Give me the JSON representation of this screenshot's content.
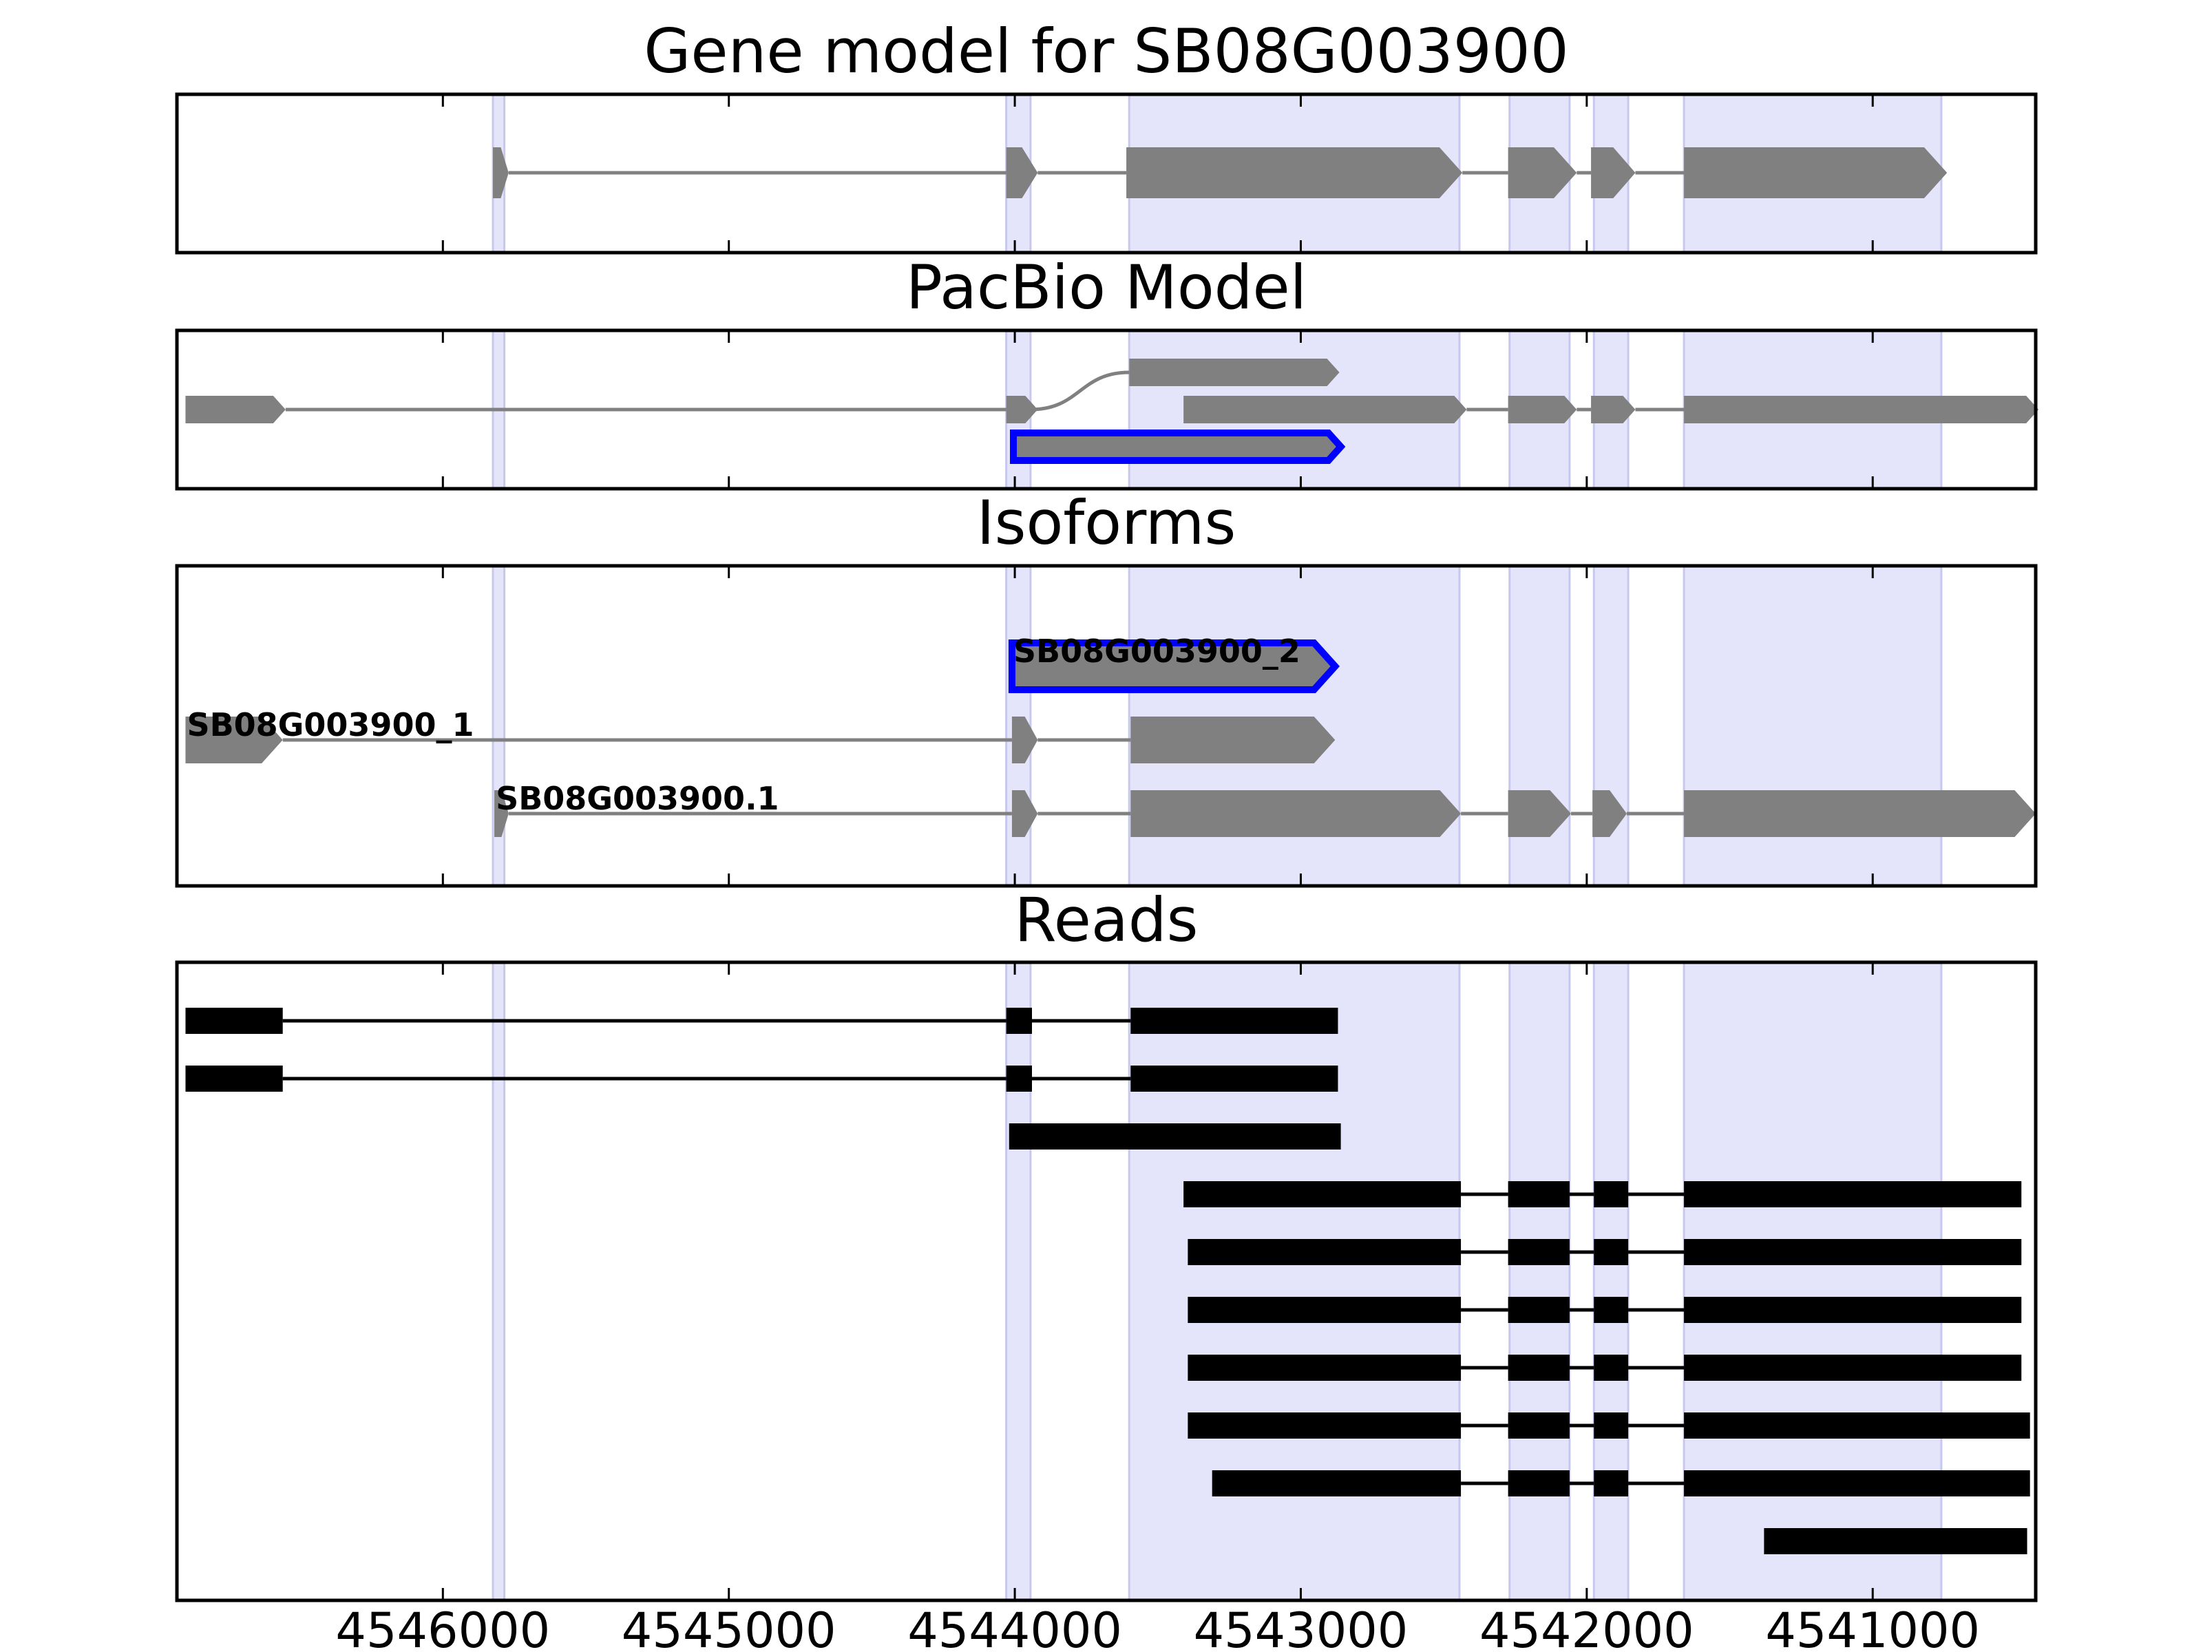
{
  "chart_data": {
    "type": "gene_model",
    "x_ticks": [
      4546000,
      4545000,
      4544000,
      4543000,
      4542000,
      4541000
    ],
    "xlim": [
      4546930,
      4540430
    ],
    "x_reversed": true,
    "highlight_color": "#e4e4fb",
    "gene_color": "#808080",
    "selected_color": "#0000ff",
    "read_color": "#000000",
    "highlight_regions": [
      [
        4545825,
        4545785
      ],
      [
        4544030,
        4543945
      ],
      [
        4543600,
        4542445
      ],
      [
        4542270,
        4542060
      ],
      [
        4541975,
        4541855
      ],
      [
        4541660,
        4540760
      ]
    ],
    "panels": [
      {
        "title": "Gene model for SB08G003900",
        "tracks": [
          {
            "row": 0,
            "exons": [
              [
                4545825,
                4545770
              ],
              [
                4544030,
                4543920
              ],
              [
                4543610,
                4542435
              ],
              [
                4542275,
                4542035
              ],
              [
                4541985,
                4541830
              ],
              [
                4541660,
                4540740
              ]
            ]
          }
        ]
      },
      {
        "title": "PacBio Model",
        "tracks": [
          {
            "row": 0,
            "exons": [
              [
                4543600,
                4542865
              ]
            ],
            "connector": [
              4543945,
              4543600,
              1
            ]
          },
          {
            "row": 1,
            "exons": [
              [
                4546900,
                4546550
              ],
              [
                4544030,
                4543920
              ],
              [
                4543410,
                4542420
              ],
              [
                4542275,
                4542035
              ],
              [
                4541985,
                4541830
              ],
              [
                4541660,
                4540420
              ]
            ],
            "no_link": [
              [
                4543920,
                4543410
              ]
            ]
          },
          {
            "row": 2,
            "exons": [
              [
                4544005,
                4542860
              ]
            ],
            "selected": true
          }
        ]
      },
      {
        "title": "Isoforms",
        "labels": [
          "SB08G003900_2",
          "SB08G003900_1",
          "SB08G003900.1"
        ],
        "tracks": [
          {
            "row": 0,
            "exons": [
              [
                4544010,
                4542880
              ]
            ],
            "selected": true,
            "label_index": 0
          },
          {
            "row": 1,
            "exons": [
              [
                4546900,
                4546560
              ],
              [
                4544010,
                4543920
              ],
              [
                4543595,
                4542880
              ]
            ],
            "label_index": 1
          },
          {
            "row": 2,
            "exons": [
              [
                4545820,
                4545770
              ],
              [
                4544010,
                4543920
              ],
              [
                4543595,
                4542440
              ],
              [
                4542275,
                4542055
              ],
              [
                4541980,
                4541860
              ],
              [
                4541660,
                4540430
              ]
            ],
            "label_index": 2
          }
        ]
      },
      {
        "title": "Reads",
        "tracks": [
          {
            "row": 0,
            "exons": [
              [
                4546900,
                4546560
              ],
              [
                4544030,
                4543940
              ],
              [
                4543595,
                4542870
              ]
            ]
          },
          {
            "row": 1,
            "exons": [
              [
                4546900,
                4546560
              ],
              [
                4544030,
                4543940
              ],
              [
                4543595,
                4542870
              ]
            ]
          },
          {
            "row": 2,
            "exons": [
              [
                4544020,
                4542860
              ]
            ]
          },
          {
            "row": 3,
            "exons": [
              [
                4543410,
                4542440
              ],
              [
                4542275,
                4542060
              ],
              [
                4541975,
                4541855
              ],
              [
                4541660,
                4540480
              ]
            ]
          },
          {
            "row": 4,
            "exons": [
              [
                4543395,
                4542440
              ],
              [
                4542275,
                4542060
              ],
              [
                4541975,
                4541855
              ],
              [
                4541660,
                4540480
              ]
            ]
          },
          {
            "row": 5,
            "exons": [
              [
                4543395,
                4542440
              ],
              [
                4542275,
                4542060
              ],
              [
                4541975,
                4541855
              ],
              [
                4541660,
                4540480
              ]
            ]
          },
          {
            "row": 6,
            "exons": [
              [
                4543395,
                4542440
              ],
              [
                4542275,
                4542060
              ],
              [
                4541975,
                4541855
              ],
              [
                4541660,
                4540480
              ]
            ]
          },
          {
            "row": 7,
            "exons": [
              [
                4543395,
                4542440
              ],
              [
                4542275,
                4542060
              ],
              [
                4541975,
                4541855
              ],
              [
                4541660,
                4540450
              ]
            ]
          },
          {
            "row": 8,
            "exons": [
              [
                4543310,
                4542440
              ],
              [
                4542275,
                4542060
              ],
              [
                4541975,
                4541855
              ],
              [
                4541660,
                4540450
              ]
            ]
          },
          {
            "row": 9,
            "exons": [
              [
                4541380,
                4540460
              ]
            ]
          }
        ]
      }
    ]
  }
}
